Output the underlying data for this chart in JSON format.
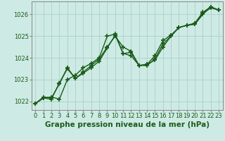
{
  "title": "Graphe pression niveau de la mer (hPa)",
  "background_color": "#ceeae4",
  "grid_color": "#aed4cc",
  "line_color": "#1a5c1a",
  "series": [
    [
      1021.9,
      1022.15,
      1022.2,
      1022.1,
      1023.0,
      1023.2,
      1023.55,
      1023.75,
      1024.0,
      1025.0,
      1025.1,
      1024.2,
      1024.25,
      1023.65,
      1023.7,
      1023.9,
      1024.5,
      1025.0,
      1025.4,
      1025.5,
      1025.55,
      1026.0,
      1026.35,
      1026.2
    ],
    [
      1021.9,
      1022.2,
      1022.15,
      1022.8,
      1023.55,
      1023.05,
      1023.3,
      1023.55,
      1023.85,
      1024.45,
      1025.05,
      1024.2,
      1024.1,
      1023.65,
      1023.65,
      1023.95,
      1024.65,
      1025.0,
      1025.4,
      1025.5,
      1025.55,
      1026.05,
      1026.3,
      1026.2
    ],
    [
      1021.9,
      1022.15,
      1022.1,
      1022.85,
      1023.5,
      1023.05,
      1023.35,
      1023.65,
      1023.95,
      1024.5,
      1025.0,
      1024.5,
      1024.3,
      1023.65,
      1023.7,
      1024.1,
      1024.8,
      1025.05,
      1025.4,
      1025.5,
      1025.6,
      1026.1,
      1026.35,
      1026.2
    ]
  ],
  "ylim": [
    1021.6,
    1026.6
  ],
  "xlim": [
    -0.5,
    23.5
  ],
  "yticks": [
    1022,
    1023,
    1024,
    1025,
    1026
  ],
  "xticks": [
    0,
    1,
    2,
    3,
    4,
    5,
    6,
    7,
    8,
    9,
    10,
    11,
    12,
    13,
    14,
    15,
    16,
    17,
    18,
    19,
    20,
    21,
    22,
    23
  ],
  "marker": "+",
  "markersize": 5,
  "linewidth": 1.0,
  "title_fontsize": 7.5,
  "tick_fontsize": 6.0
}
